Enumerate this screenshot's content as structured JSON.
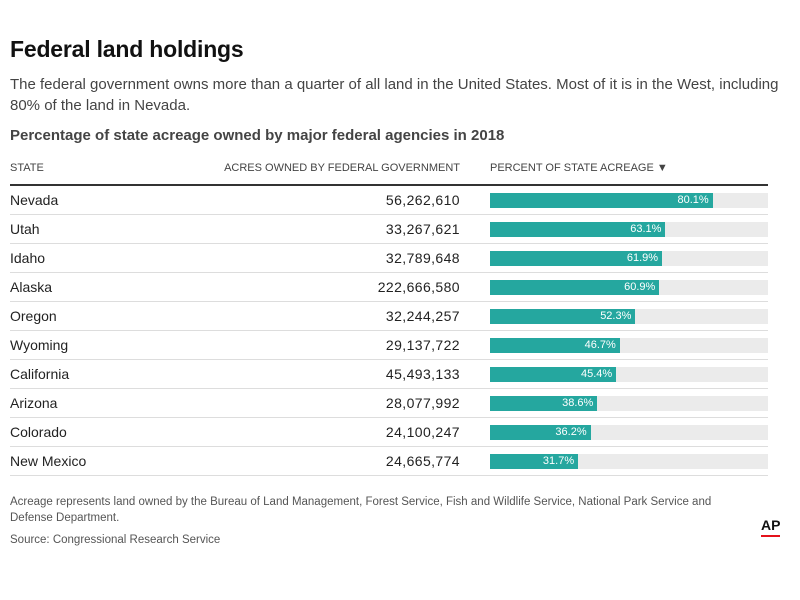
{
  "header": {
    "title": "Federal land holdings",
    "description": "The federal government owns more than a quarter of all land in the United States. Most of it is in the West, including 80% of the land in Nevada.",
    "subtitle": "Percentage of state acreage owned by major federal agencies in 2018"
  },
  "table": {
    "col_state": "STATE",
    "col_acres": "ACRES OWNED BY FEDERAL GOVERNMENT",
    "col_percent": "PERCENT OF STATE ACREAGE ▼",
    "rows": [
      {
        "state": "Nevada",
        "acres": "56,262,610",
        "pct_label": "80.1%"
      },
      {
        "state": "Utah",
        "acres": "33,267,621",
        "pct_label": "63.1%"
      },
      {
        "state": "Idaho",
        "acres": "32,789,648",
        "pct_label": "61.9%"
      },
      {
        "state": "Alaska",
        "acres": "222,666,580",
        "pct_label": "60.9%"
      },
      {
        "state": "Oregon",
        "acres": "32,244,257",
        "pct_label": "52.3%"
      },
      {
        "state": "Wyoming",
        "acres": "29,137,722",
        "pct_label": "46.7%"
      },
      {
        "state": "California",
        "acres": "45,493,133",
        "pct_label": "45.4%"
      },
      {
        "state": "Arizona",
        "acres": "28,077,992",
        "pct_label": "38.6%"
      },
      {
        "state": "Colorado",
        "acres": "24,100,247",
        "pct_label": "36.2%"
      },
      {
        "state": "New Mexico",
        "acres": "24,665,774",
        "pct_label": "31.7%"
      }
    ]
  },
  "chart_data": {
    "type": "bar",
    "categories": [
      "Nevada",
      "Utah",
      "Idaho",
      "Alaska",
      "Oregon",
      "Wyoming",
      "California",
      "Arizona",
      "Colorado",
      "New Mexico"
    ],
    "series": [
      {
        "name": "PERCENT OF STATE ACREAGE",
        "values": [
          80.1,
          63.1,
          61.9,
          60.9,
          52.3,
          46.7,
          45.4,
          38.6,
          36.2,
          31.7
        ]
      }
    ],
    "ylim": [
      0,
      100
    ],
    "bar_color": "#25a79f",
    "track_color": "#ebebeb"
  },
  "footer": {
    "note": "Acreage represents land owned by the Bureau of Land Management, Forest Service, Fish and Wildlife Service, National Park Service and Defense Department.",
    "source": "Source: Congressional Research Service",
    "logo": "AP",
    "logo_accent": "#e4121b"
  }
}
